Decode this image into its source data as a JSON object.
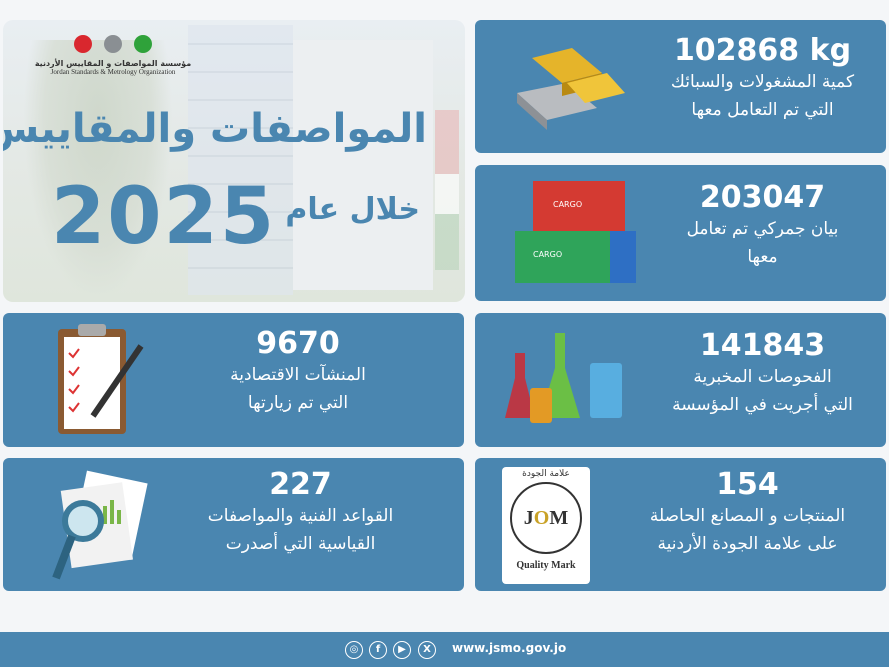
{
  "hero": {
    "logo_ar": "مؤسسة المواصفات و المقاييس الأردنية",
    "logo_en": "Jordan Standards & Metrology Organization",
    "title": "المواصفات والمقاييس",
    "subtitle": "خلال عام",
    "year": "2025"
  },
  "cards": [
    {
      "value": "102868 kg",
      "line1": "كمية المشغولات والسبائك",
      "line2": "التي تم التعامل معها",
      "icon": "gold-bars-icon"
    },
    {
      "value": "203047",
      "line1": "بيان جمركي تم تعامل",
      "line2": "معها",
      "icon": "cargo-containers-icon"
    },
    {
      "value": "141843",
      "line1": "الفحوصات المخبرية",
      "line2": "التي أجريت في المؤسسة",
      "icon": "lab-flasks-icon"
    },
    {
      "value": "9670",
      "line1": "المنشآت الاقتصادية",
      "line2": "التي تم زيارتها",
      "icon": "clipboard-checklist-icon"
    },
    {
      "value": "154",
      "line1": "المنتجات و المصانع الحاصلة",
      "line2": "على علامة الجودة الأردنية",
      "icon": "quality-mark-icon",
      "badge_top": "علامة الجودة",
      "badge_bottom": "Quality Mark"
    },
    {
      "value": "227",
      "line1": "القواعد الفنية والمواصفات",
      "line2": "القياسية التي أصدرت",
      "icon": "magnifier-documents-icon"
    }
  ],
  "footer": {
    "url": "www.jsmo.gov.jo",
    "social": [
      "instagram-icon",
      "facebook-icon",
      "youtube-icon",
      "x-icon"
    ]
  },
  "colors": {
    "primary": "#4a86b0",
    "background": "#f4f6f8"
  }
}
